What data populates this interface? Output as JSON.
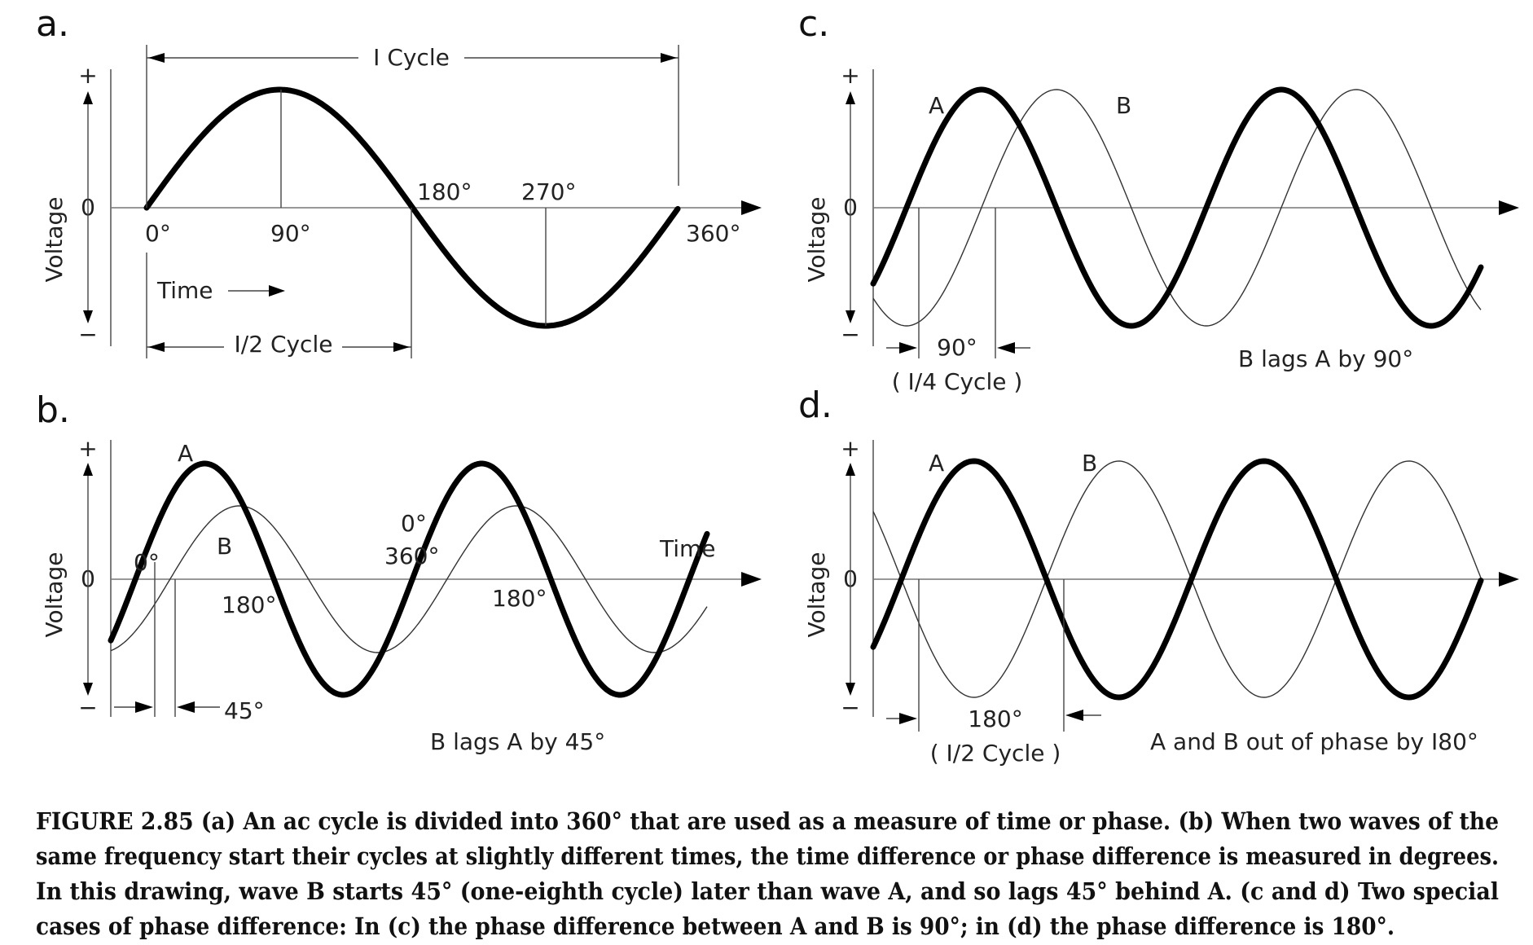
{
  "panels": {
    "a": {
      "letter": "a.",
      "ylabel": "Voltage",
      "plus": "+",
      "zero": "0",
      "minus": "−",
      "one_cycle": "I Cycle",
      "half_cycle": "I/2 Cycle",
      "time": "Time",
      "deg0": "0°",
      "deg90": "90°",
      "deg180": "180°",
      "deg270": "270°",
      "deg360": "360°"
    },
    "b": {
      "letter": "b.",
      "ylabel": "Voltage",
      "plus": "+",
      "zero": "0",
      "minus": "−",
      "wave_a": "A",
      "wave_b": "B",
      "deg0": "0°",
      "deg0b": "0°",
      "deg360": "360°",
      "deg180_1": "180°",
      "deg180_2": "180°",
      "time": "Time",
      "deg45": "45°",
      "note": "B lags A by 45°"
    },
    "c": {
      "letter": "c.",
      "ylabel": "Voltage",
      "plus": "+",
      "zero": "0",
      "minus": "−",
      "wave_a": "A",
      "wave_b": "B",
      "deg90": "90°",
      "quarter": "( I/4 Cycle )",
      "note": "B lags A by 90°"
    },
    "d": {
      "letter": "d.",
      "ylabel": "Voltage",
      "plus": "+",
      "zero": "0",
      "minus": "−",
      "wave_a": "A",
      "wave_b": "B",
      "deg180": "180°",
      "half": "( I/2 Cycle )",
      "note": "A and B out of phase by I80°"
    }
  },
  "caption": {
    "line1": "FIGURE 2.85    (a) An ac cycle is divided into 360° that are used as a measure of time or phase. (b) When two waves of the",
    "line2": "same frequency start their cycles at slightly different times, the time difference or phase difference is measured in degrees.",
    "line3": "In this drawing, wave B starts 45° (one-eighth cycle) later than wave A, and so lags 45° behind A. (c and d) Two special",
    "line4": "cases of phase difference: In (c) the phase difference between A and B is 90°; in (d) the phase difference is 180°."
  }
}
